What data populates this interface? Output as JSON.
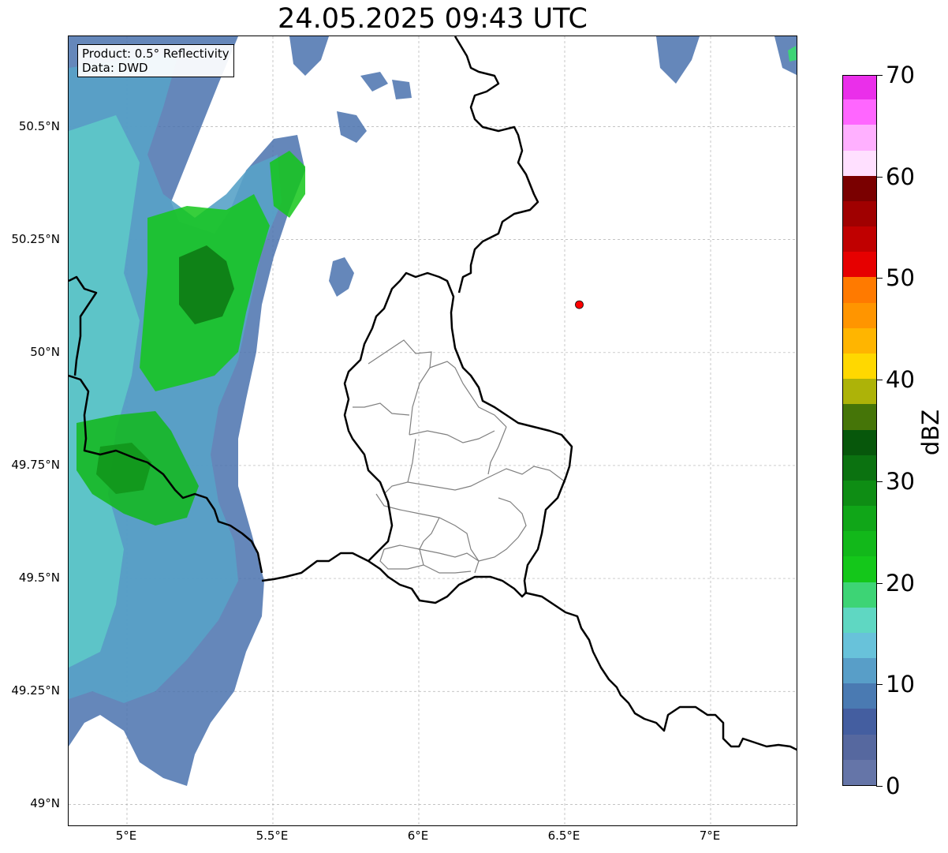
{
  "title": "24.05.2025 09:43 UTC",
  "info_box": {
    "product": "Product: 0.5° Reflectivity",
    "data": "Data: DWD"
  },
  "map": {
    "lon_range": [
      4.8,
      7.3
    ],
    "lat_range": [
      48.95,
      50.7
    ],
    "y_ticks": [
      {
        "lat": 50.5,
        "label": "50.5°N"
      },
      {
        "lat": 50.25,
        "label": "50.25°N"
      },
      {
        "lat": 50.0,
        "label": "50°N"
      },
      {
        "lat": 49.75,
        "label": "49.75°N"
      },
      {
        "lat": 49.5,
        "label": "49.5°N"
      },
      {
        "lat": 49.25,
        "label": "49.25°N"
      },
      {
        "lat": 49.0,
        "label": "49°N"
      }
    ],
    "x_ticks": [
      {
        "lon": 5.0,
        "label": "5°E"
      },
      {
        "lon": 5.5,
        "label": "5.5°E"
      },
      {
        "lon": 6.0,
        "label": "6°E"
      },
      {
        "lon": 6.5,
        "label": "6.5°E"
      },
      {
        "lon": 7.0,
        "label": "7°E"
      }
    ],
    "marker": {
      "lon": 6.55,
      "lat": 50.106,
      "color": "#ff0000"
    },
    "border_color": "#000000",
    "subdivision_color": "#808080",
    "grid": true
  },
  "colorbar": {
    "label": "dBZ",
    "min": 0,
    "max": 70,
    "ticks": [
      {
        "value": 0,
        "label": "0"
      },
      {
        "value": 10,
        "label": "10"
      },
      {
        "value": 20,
        "label": "20"
      },
      {
        "value": 30,
        "label": "30"
      },
      {
        "value": 40,
        "label": "40"
      },
      {
        "value": 50,
        "label": "50"
      },
      {
        "value": 60,
        "label": "60"
      },
      {
        "value": 70,
        "label": "70"
      }
    ],
    "colors": [
      "#6575a8",
      "#56689f",
      "#445ea0",
      "#4a7ab2",
      "#589ec8",
      "#68c2da",
      "#5fd7c2",
      "#3dd475",
      "#14c71a",
      "#12b81a",
      "#10a618",
      "#0e8d14",
      "#0b7210",
      "#07570b",
      "#457508",
      "#adb308",
      "#ffd800",
      "#ffb500",
      "#ff9500",
      "#ff7a00",
      "#e60000",
      "#c00000",
      "#a00000",
      "#7a0000",
      "#ffe0ff",
      "#ffb0ff",
      "#ff66ff",
      "#ea2fea"
    ]
  }
}
